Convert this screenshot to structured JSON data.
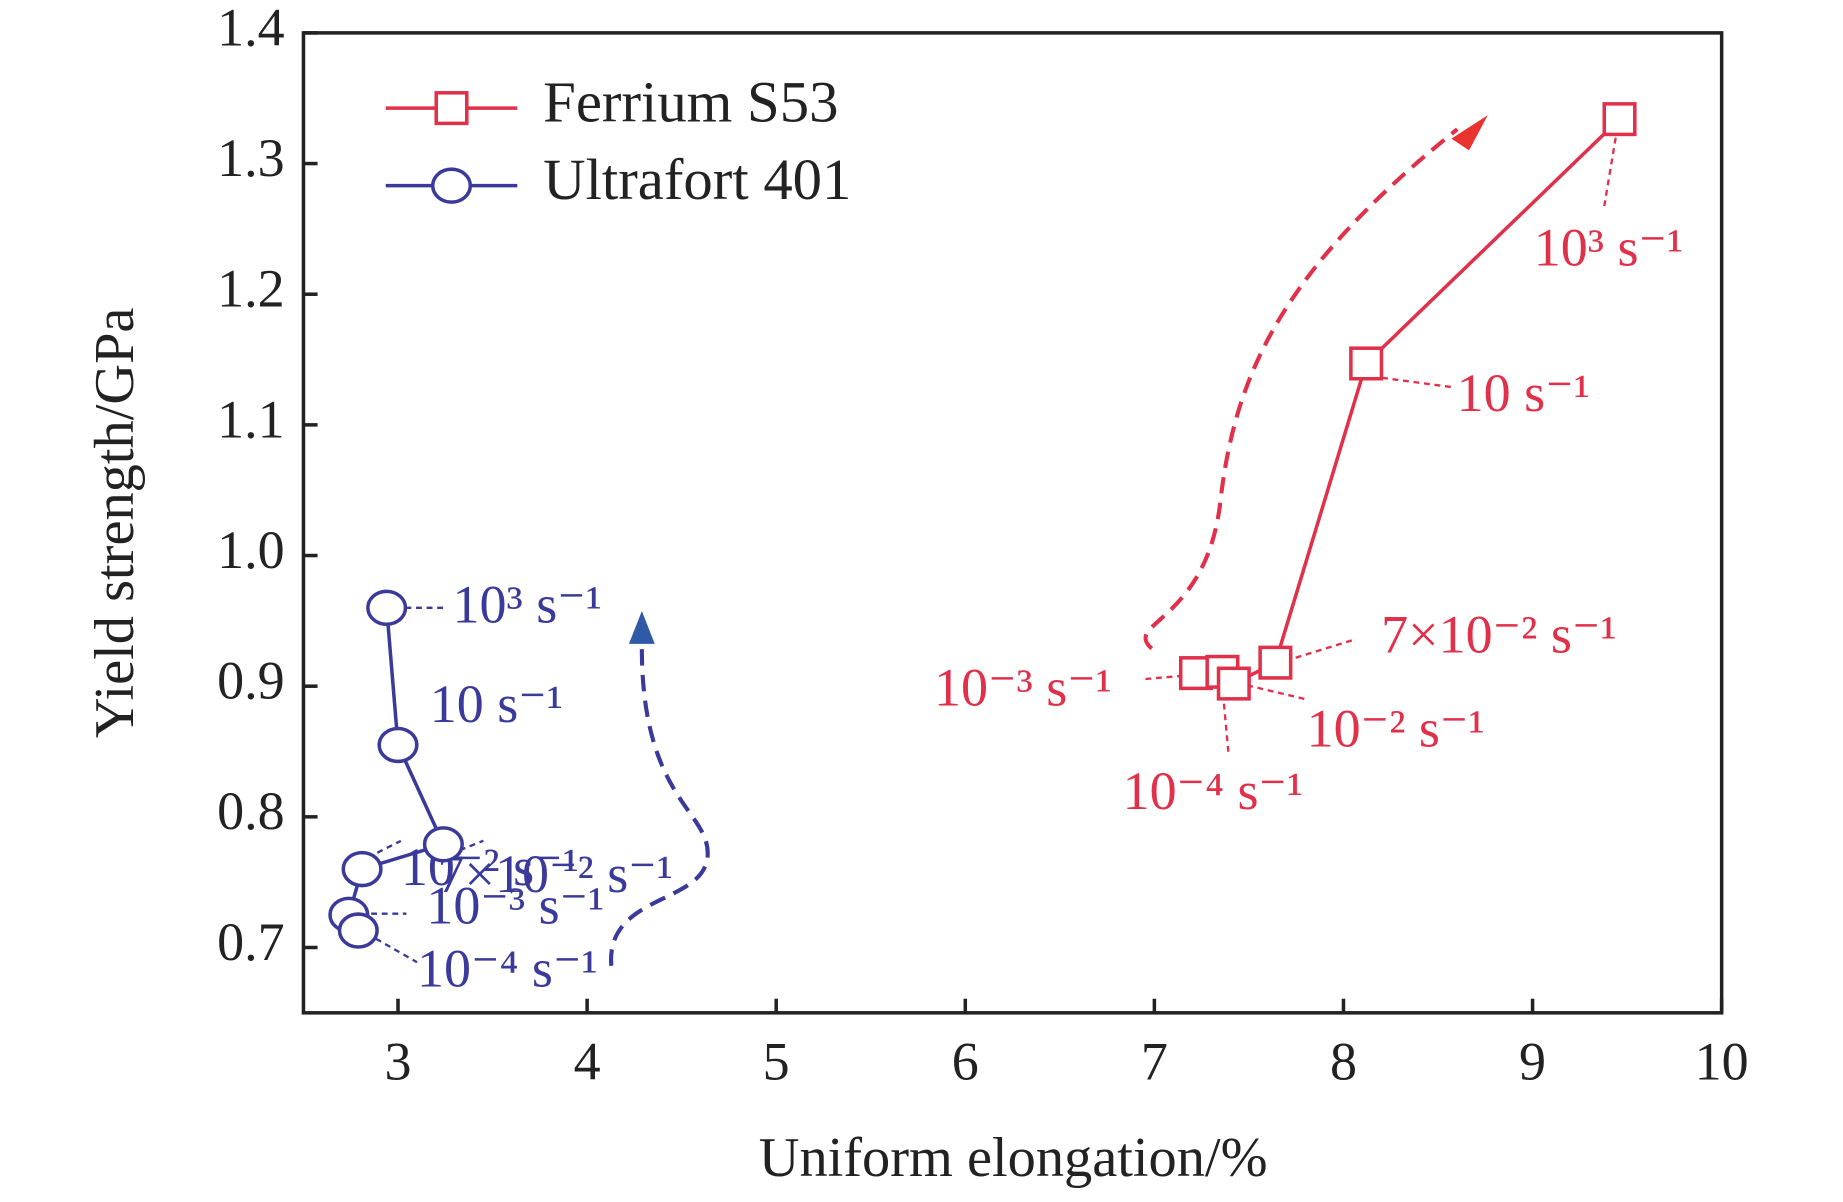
{
  "chart_data": {
    "type": "line",
    "x_label": "Uniform elongation/%",
    "y_label": "Yield strength/GPa",
    "xlim": [
      2.5,
      10
    ],
    "ylim": [
      0.65,
      1.4
    ],
    "xticks": [
      3,
      4,
      5,
      6,
      7,
      8,
      9,
      10
    ],
    "yticks": [
      0.7,
      0.8,
      0.9,
      {
        "value": 1.0,
        "label": "1.0"
      },
      1.1,
      1.2,
      1.3,
      1.4
    ],
    "series": [
      {
        "name": "Ferrium S53",
        "color": "#e0304a",
        "marker": "square",
        "x": [
          7.22,
          7.36,
          7.42,
          7.64,
          8.12,
          9.46
        ],
        "values": [
          0.91,
          0.911,
          0.902,
          0.918,
          1.147,
          1.334
        ],
        "point_labels": [
          "10⁻³ s⁻¹",
          "10⁻⁴ s⁻¹",
          "10⁻² s⁻¹",
          "7×10⁻² s⁻¹",
          "10 s⁻¹",
          "10³ s⁻¹"
        ]
      },
      {
        "name": "Ultrafort 401",
        "color": "#3a3a9a",
        "marker": "circle",
        "x": [
          2.94,
          3.0,
          3.24,
          2.81,
          2.74,
          2.79
        ],
        "values": [
          0.96,
          0.855,
          0.779,
          0.76,
          0.725,
          0.713
        ],
        "point_labels": [
          "10³ s⁻¹",
          "10 s⁻¹",
          "7×10⁻² s⁻¹",
          "10⁻² s⁻¹",
          "10⁻³ s⁻¹",
          "10⁻⁴ s⁻¹"
        ]
      }
    ]
  }
}
